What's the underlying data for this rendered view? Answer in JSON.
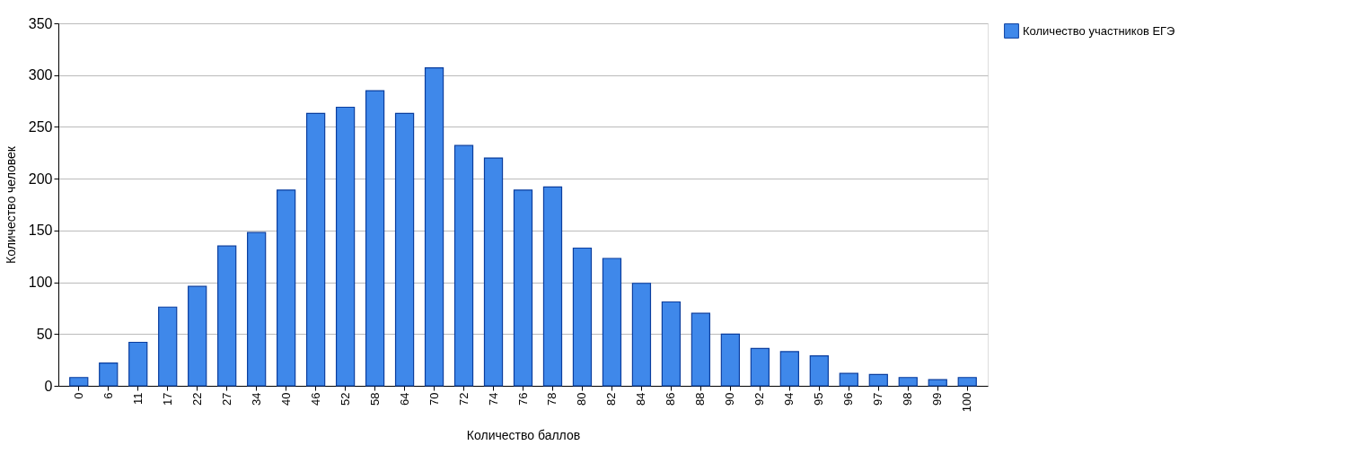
{
  "chart_data": {
    "type": "bar",
    "xlabel": "Количество баллов",
    "ylabel": "Количество человек",
    "categories": [
      "0",
      "6",
      "11",
      "17",
      "22",
      "27",
      "34",
      "40",
      "46",
      "52",
      "58",
      "64",
      "70",
      "72",
      "74",
      "76",
      "78",
      "80",
      "82",
      "84",
      "86",
      "88",
      "90",
      "92",
      "94",
      "95",
      "96",
      "97",
      "98",
      "99",
      "100"
    ],
    "series": [
      {
        "name": "Количество участников ЕГЭ",
        "color": "#3f88ea",
        "values": [
          8,
          22,
          42,
          76,
          96,
          135,
          148,
          189,
          263,
          269,
          285,
          263,
          307,
          232,
          220,
          189,
          192,
          133,
          123,
          99,
          81,
          70,
          50,
          36,
          33,
          29,
          12,
          11,
          8,
          6,
          8
        ]
      }
    ],
    "ylim": [
      0,
      350
    ],
    "yticks": [
      0,
      50,
      100,
      150,
      200,
      250,
      300,
      350
    ],
    "grid": "y",
    "legend": "top right"
  }
}
